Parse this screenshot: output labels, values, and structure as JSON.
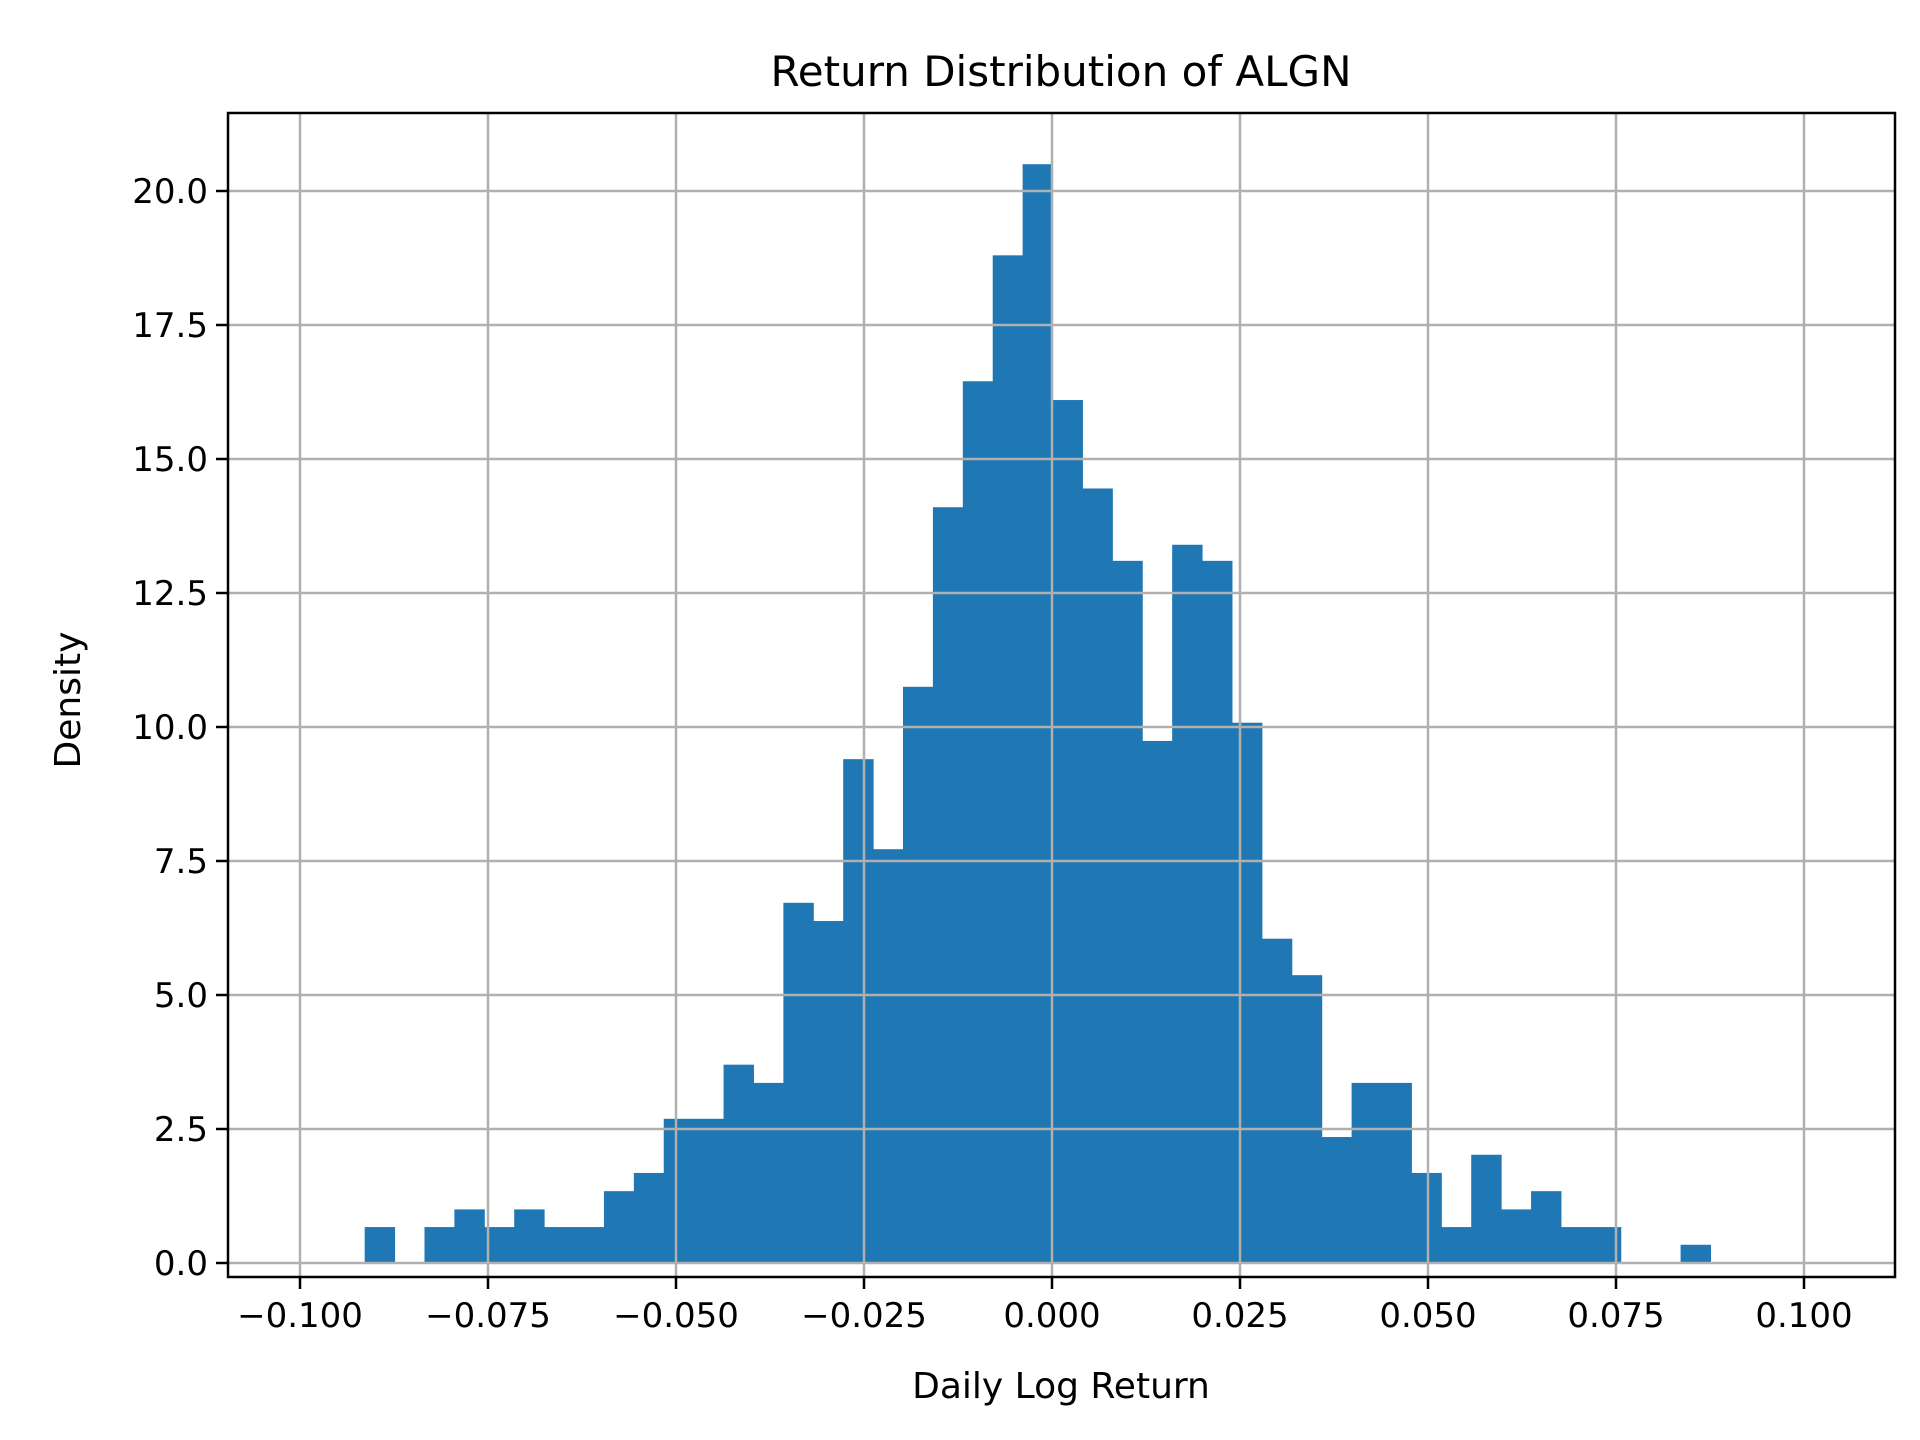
{
  "chart_data": {
    "type": "bar",
    "title": "Return Distribution of ALGN",
    "xlabel": "Daily Log Return",
    "ylabel": "Density",
    "xlim": [
      -0.11,
      0.11
    ],
    "ylim": [
      0,
      21.5
    ],
    "grid": true,
    "bar_color": "#1f77b4",
    "bin_start": -0.0914,
    "bin_width": 0.003977,
    "x_ticks": [
      "−0.100",
      "−0.075",
      "−0.050",
      "−0.025",
      "0.000",
      "0.025",
      "0.050",
      "0.075",
      "0.100"
    ],
    "x_tick_values": [
      -0.1,
      -0.075,
      -0.05,
      -0.025,
      0,
      0.025,
      0.05,
      0.075,
      0.1
    ],
    "y_ticks": [
      "0.0",
      "2.5",
      "5.0",
      "7.5",
      "10.0",
      "12.5",
      "15.0",
      "17.5",
      "20.0"
    ],
    "y_tick_values": [
      0,
      2.5,
      5,
      7.5,
      10,
      12.5,
      15,
      17.5,
      20
    ],
    "values": [
      0.67,
      0,
      0.67,
      1.0,
      0.67,
      1.0,
      0.67,
      0.67,
      1.34,
      1.68,
      2.69,
      2.69,
      3.7,
      3.36,
      6.72,
      6.38,
      9.4,
      7.72,
      10.75,
      14.1,
      16.45,
      18.8,
      20.5,
      16.1,
      14.45,
      13.1,
      9.74,
      13.4,
      13.1,
      10.08,
      6.05,
      5.37,
      2.35,
      3.36,
      3.36,
      1.68,
      0.67,
      2.02,
      1.0,
      1.34,
      0.67,
      0.67,
      0,
      0,
      0.34
    ]
  }
}
